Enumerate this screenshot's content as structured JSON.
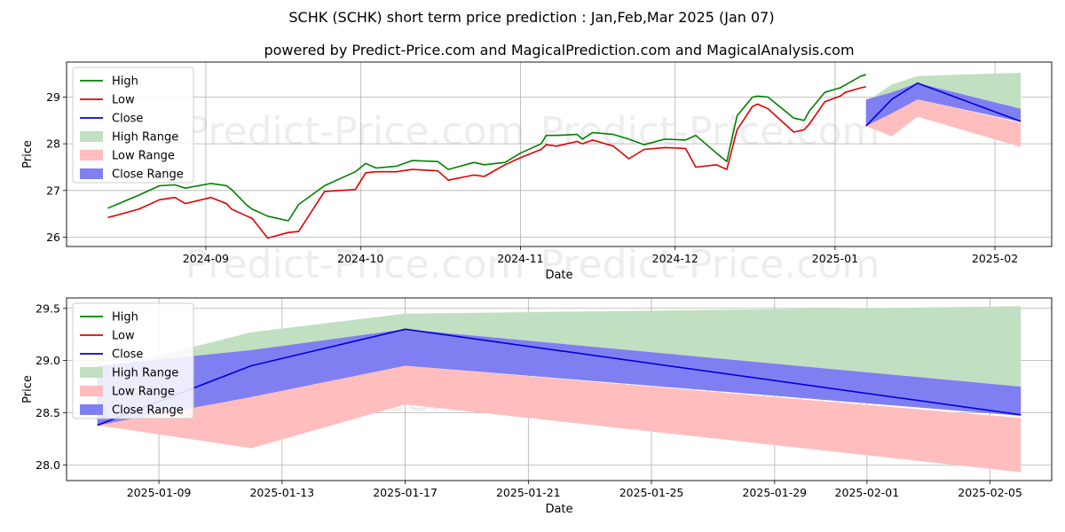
{
  "figure": {
    "title": "SCHK (SCHK) short term price prediction : Jan,Feb,Mar 2025 (Jan 07)",
    "subtitle": "powered by Predict-Price.com and MagicalPrediction.com and MagicalAnalysis.com",
    "watermark": "Predict-Price.com"
  },
  "colors": {
    "high": "#008000",
    "low": "#e00000",
    "close": "#0000dd",
    "high_range": "#c1dfc1",
    "low_range": "#ffbdbd",
    "close_range": "#7f7ff2",
    "grid": "#b0b0b0"
  },
  "chart_data": [
    {
      "type": "line",
      "xlabel": "Date",
      "ylabel": "Price",
      "xlim": [
        "2024-08-05",
        "2025-02-12"
      ],
      "ylim": [
        25.8,
        29.75
      ],
      "yticks": [
        "26",
        "27",
        "28",
        "29"
      ],
      "xticks": [
        "2024-09",
        "2024-10",
        "2024-11",
        "2024-12",
        "2025-01",
        "2025-02"
      ],
      "legend": [
        "High",
        "Low",
        "Close",
        "High Range",
        "Low Range",
        "Close Range"
      ],
      "legend_position": "upper-left",
      "grid": true,
      "history": {
        "dates": [
          "2024-08-13",
          "2024-08-19",
          "2024-08-23",
          "2024-08-26",
          "2024-08-28",
          "2024-09-02",
          "2024-09-05",
          "2024-09-06",
          "2024-09-09",
          "2024-09-10",
          "2024-09-13",
          "2024-09-17",
          "2024-09-19",
          "2024-09-24",
          "2024-09-30",
          "2024-10-02",
          "2024-10-04",
          "2024-10-08",
          "2024-10-11",
          "2024-10-16",
          "2024-10-18",
          "2024-10-23",
          "2024-10-25",
          "2024-10-29",
          "2024-11-01",
          "2024-11-05",
          "2024-11-06",
          "2024-11-08",
          "2024-11-12",
          "2024-11-13",
          "2024-11-15",
          "2024-11-19",
          "2024-11-22",
          "2024-11-25",
          "2024-11-29",
          "2024-12-03",
          "2024-12-05",
          "2024-12-09",
          "2024-12-11",
          "2024-12-13",
          "2024-12-16",
          "2024-12-17",
          "2024-12-19",
          "2024-12-24",
          "2024-12-26",
          "2024-12-27",
          "2024-12-30",
          "2025-01-02",
          "2025-01-03",
          "2025-01-06",
          "2025-01-07"
        ],
        "high": [
          26.62,
          26.9,
          27.1,
          27.12,
          27.05,
          27.15,
          27.1,
          27.02,
          26.68,
          26.6,
          26.45,
          26.35,
          26.7,
          27.1,
          27.4,
          27.58,
          27.48,
          27.52,
          27.64,
          27.62,
          27.45,
          27.6,
          27.55,
          27.6,
          27.8,
          28.0,
          28.18,
          28.18,
          28.2,
          28.1,
          28.24,
          28.2,
          28.1,
          27.98,
          28.1,
          28.08,
          28.18,
          27.8,
          27.62,
          28.6,
          29.0,
          29.02,
          29.0,
          28.55,
          28.5,
          28.7,
          29.1,
          29.2,
          29.26,
          29.45,
          29.48
        ],
        "low": [
          26.42,
          26.6,
          26.8,
          26.85,
          26.72,
          26.85,
          26.72,
          26.6,
          26.45,
          26.4,
          25.98,
          26.1,
          26.12,
          26.98,
          27.02,
          27.38,
          27.4,
          27.4,
          27.45,
          27.42,
          27.22,
          27.33,
          27.3,
          27.55,
          27.7,
          27.88,
          27.98,
          27.95,
          28.05,
          28.0,
          28.08,
          27.95,
          27.68,
          27.88,
          27.92,
          27.9,
          27.5,
          27.55,
          27.45,
          28.3,
          28.8,
          28.85,
          28.75,
          28.25,
          28.3,
          28.42,
          28.9,
          29.02,
          29.1,
          29.2,
          29.22
        ]
      },
      "forecast": {
        "dates": [
          "2025-01-07",
          "2025-01-12",
          "2025-01-17",
          "2025-02-06"
        ],
        "close": [
          28.38,
          28.95,
          29.3,
          28.48
        ],
        "high_range_upper": [
          28.9,
          29.27,
          29.45,
          29.52
        ],
        "high_range_lower": [
          28.4,
          28.9,
          29.3,
          28.75
        ],
        "low_range_upper": [
          28.75,
          28.65,
          28.95,
          28.45
        ],
        "low_range_lower": [
          28.38,
          28.16,
          28.58,
          27.93
        ],
        "close_range_upper": [
          28.95,
          29.1,
          29.3,
          28.75
        ],
        "close_range_lower": [
          28.38,
          28.65,
          28.95,
          28.47
        ]
      }
    },
    {
      "type": "line",
      "xlabel": "Date",
      "ylabel": "Price",
      "xlim": [
        "2025-01-06",
        "2025-02-07"
      ],
      "ylim": [
        27.85,
        29.6
      ],
      "yticks": [
        "28.0",
        "28.5",
        "29.0",
        "29.5"
      ],
      "xticks": [
        "2025-01-09",
        "2025-01-13",
        "2025-01-17",
        "2025-01-21",
        "2025-01-25",
        "2025-01-29",
        "2025-02-01",
        "2025-02-05"
      ],
      "legend": [
        "High",
        "Low",
        "Close",
        "High Range",
        "Low Range",
        "Close Range"
      ],
      "legend_position": "upper-left",
      "grid": true,
      "forecast": {
        "dates": [
          "2025-01-07",
          "2025-01-12",
          "2025-01-17",
          "2025-02-06"
        ],
        "close": [
          28.38,
          28.95,
          29.3,
          28.48
        ],
        "high_range_upper": [
          28.9,
          29.27,
          29.45,
          29.52
        ],
        "high_range_lower": [
          28.4,
          28.9,
          29.3,
          28.75
        ],
        "low_range_upper": [
          28.75,
          28.65,
          28.95,
          28.45
        ],
        "low_range_lower": [
          28.38,
          28.16,
          28.58,
          27.93
        ],
        "close_range_upper": [
          28.95,
          29.1,
          29.3,
          28.75
        ],
        "close_range_lower": [
          28.38,
          28.65,
          28.95,
          28.47
        ]
      }
    }
  ]
}
